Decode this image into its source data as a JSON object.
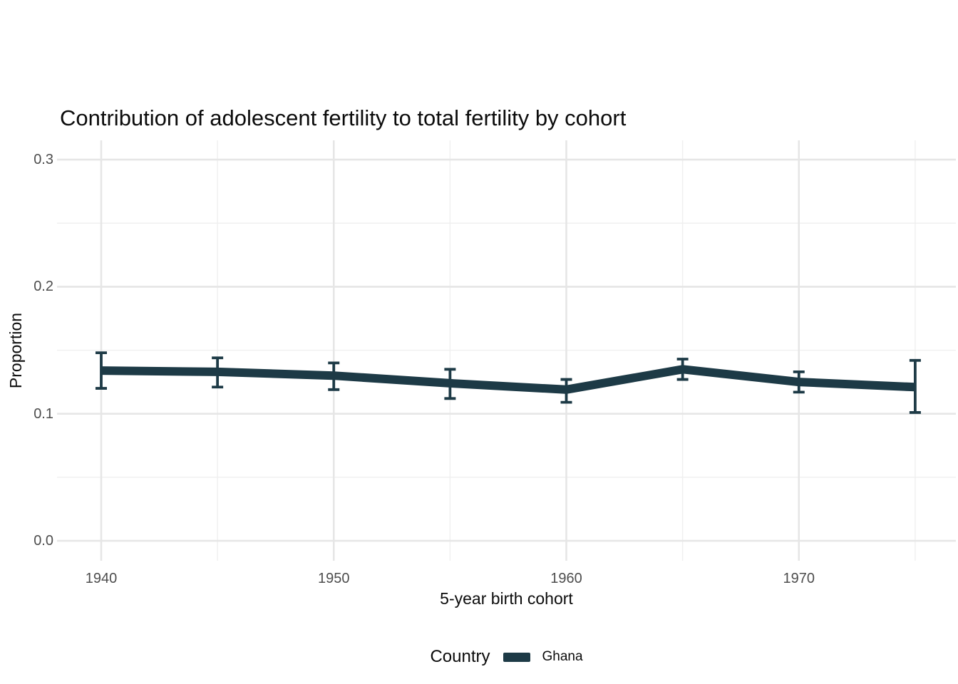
{
  "chart_data": {
    "type": "line",
    "title": "Contribution of adolescent fertility to total fertility by cohort",
    "xlabel": "5-year birth cohort",
    "ylabel": "Proportion",
    "legend": {
      "title": "Country",
      "position": "bottom",
      "entries": [
        {
          "label": "Ghana",
          "color": "#1d3a46"
        }
      ]
    },
    "x": [
      1940,
      1945,
      1950,
      1955,
      1960,
      1965,
      1970,
      1975
    ],
    "series": [
      {
        "name": "Ghana",
        "values": [
          0.134,
          0.133,
          0.13,
          0.124,
          0.119,
          0.135,
          0.125,
          0.121
        ],
        "ci_lower": [
          0.12,
          0.121,
          0.119,
          0.112,
          0.109,
          0.127,
          0.117,
          0.101
        ],
        "ci_upper": [
          0.148,
          0.144,
          0.14,
          0.135,
          0.127,
          0.143,
          0.133,
          0.142
        ],
        "color": "#1d3a46"
      }
    ],
    "x_ticks": [
      1940,
      1950,
      1960,
      1970
    ],
    "x_tick_labels": [
      "1940",
      "1950",
      "1960",
      "1970"
    ],
    "x_minor_ticks": [
      1945,
      1955,
      1965,
      1975
    ],
    "y_ticks": [
      0.0,
      0.1,
      0.2,
      0.3
    ],
    "y_tick_labels": [
      "0.0",
      "0.1",
      "0.2",
      "0.3"
    ],
    "y_minor_ticks": [
      0.05,
      0.15,
      0.25
    ],
    "xlim": [
      1938.1,
      1976.75
    ],
    "ylim": [
      -0.0157,
      0.3152
    ],
    "grid": true,
    "error_bars": true,
    "colors": {
      "line": "#1d3a46",
      "grid_major": "#e6e6e6",
      "grid_minor": "#efefef",
      "axis_text": "#4d4d4d",
      "text": "#0b0b0b",
      "background": "#ffffff"
    }
  }
}
